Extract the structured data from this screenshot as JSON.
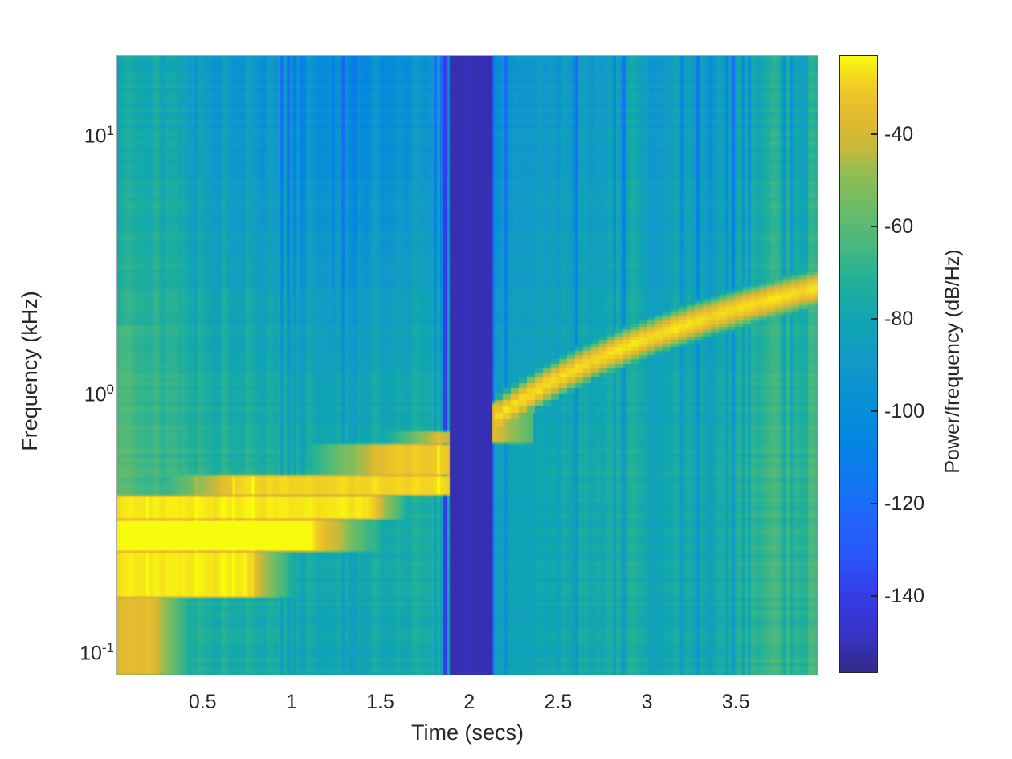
{
  "figure": {
    "background": "#ffffff",
    "axis_border_color": "#ababab",
    "text_color": "#262626"
  },
  "chart_data": {
    "type": "heatmap",
    "subtype": "spectrogram",
    "title": "",
    "xlabel": "Time (secs)",
    "ylabel": "Frequency (kHz)",
    "colorbar_label": "Power/frequency (dB/Hz)",
    "x_ticks": [
      "0.5",
      "1",
      "1.5",
      "2",
      "2.5",
      "3",
      "3.5"
    ],
    "x_tick_values": [
      0.5,
      1,
      1.5,
      2,
      2.5,
      3,
      3.5
    ],
    "y_ticks": [
      {
        "base": "10",
        "exp": "1",
        "value_kHz": 10
      },
      {
        "base": "10",
        "exp": "0",
        "value_kHz": 1
      },
      {
        "base": "10",
        "exp": "-1",
        "value_kHz": 0.1
      }
    ],
    "y_scale": "log",
    "x_range_s": [
      0.02,
      3.96
    ],
    "y_range_kHz": [
      0.08,
      19.7
    ],
    "colorbar_ticks": [
      -40,
      -60,
      -80,
      -100,
      -120,
      -140
    ],
    "color_range_dB": [
      -156.7,
      -23.2
    ],
    "colormap": {
      "name": "parula",
      "stops": [
        [
          0.0,
          "#352a87"
        ],
        [
          0.063,
          "#3634c8"
        ],
        [
          0.127,
          "#353de7"
        ],
        [
          0.19,
          "#2c57f9"
        ],
        [
          0.254,
          "#2067fa"
        ],
        [
          0.317,
          "#0f78f0"
        ],
        [
          0.381,
          "#0487e0"
        ],
        [
          0.444,
          "#0890d5"
        ],
        [
          0.508,
          "#139ac8"
        ],
        [
          0.571,
          "#0fa5b3"
        ],
        [
          0.635,
          "#22b099"
        ],
        [
          0.698,
          "#49b87e"
        ],
        [
          0.762,
          "#72bc64"
        ],
        [
          0.815,
          "#96bd52"
        ],
        [
          0.85,
          "#c6b83c"
        ],
        [
          0.89,
          "#deb931"
        ],
        [
          0.93,
          "#ebc12c"
        ],
        [
          0.965,
          "#f3d61f"
        ],
        [
          1.0,
          "#f9fb0e"
        ]
      ]
    },
    "signal": {
      "noise_seed": 1337,
      "time_bin_s": 0.018,
      "background": {
        "left_base_dB": -72,
        "left_hf_drop_dB": 17,
        "right_base_dB": -81,
        "right_hf_drop_dB": 9,
        "right_time_slope_dB": 11,
        "edge_boost_dB": 14,
        "edge_tau_s": 0.1,
        "pre_gap_atten_dB": 10,
        "post_gap_atten_dB": 15
      },
      "silence_gap": {
        "t0_s": 1.89,
        "t1_s": 2.128,
        "dB": -151
      },
      "pre_gap_dark_column": {
        "t0_s": 1.853,
        "t1_s": 1.877,
        "dB": -140
      },
      "post_gap_dark_column": {
        "t0_s": 2.128,
        "t1_s": 2.139,
        "dB": -130
      },
      "chirp": {
        "t_start_s": 2.145,
        "f_start_kHz": 0.78,
        "rate_kHz_per_s": 0.95,
        "peak_dB": -27,
        "sigma_log10": 0.05,
        "time_quant_s": 0.045,
        "freq_quant_kHz": 0.05
      },
      "chirp_onset_blob": {
        "t0_s": 2.132,
        "t1_s": 2.36,
        "f0_kHz": 0.63,
        "f1_kHz": 0.9,
        "peak_dB": -36
      },
      "harmonic_bands": [
        {
          "f0_kHz": 0.624,
          "f1_kHz": 0.7,
          "t_on_s": 1.5,
          "ramp_s": 0.3,
          "bright_end_s": 1.89,
          "fade_s": 0.0,
          "peak_dB": -42
        },
        {
          "f0_kHz": 0.472,
          "f1_kHz": 0.624,
          "t_on_s": 1.12,
          "ramp_s": 0.45,
          "bright_end_s": 1.89,
          "fade_s": 0.0,
          "peak_dB": -31
        },
        {
          "f0_kHz": 0.394,
          "f1_kHz": 0.472,
          "t_on_s": 0.32,
          "ramp_s": 0.38,
          "bright_end_s": 1.89,
          "fade_s": 0.0,
          "peak_dB": -28
        },
        {
          "f0_kHz": 0.318,
          "f1_kHz": 0.394,
          "t_on_s": 0.02,
          "ramp_s": 0.0,
          "bright_end_s": 1.43,
          "fade_s": 0.25,
          "peak_dB": -25
        },
        {
          "f0_kHz": 0.239,
          "f1_kHz": 0.318,
          "t_on_s": 0.02,
          "ramp_s": 0.0,
          "bright_end_s": 1.1,
          "fade_s": 0.42,
          "peak_dB": -22
        },
        {
          "f0_kHz": 0.159,
          "f1_kHz": 0.239,
          "t_on_s": 0.02,
          "ramp_s": 0.0,
          "bright_end_s": 0.74,
          "fade_s": 0.3,
          "peak_dB": -25
        },
        {
          "f0_kHz": 0.08,
          "f1_kHz": 0.159,
          "t_on_s": 0.02,
          "ramp_s": 0.0,
          "bright_end_s": 0.22,
          "fade_s": 0.3,
          "peak_dB": -36
        }
      ]
    }
  }
}
